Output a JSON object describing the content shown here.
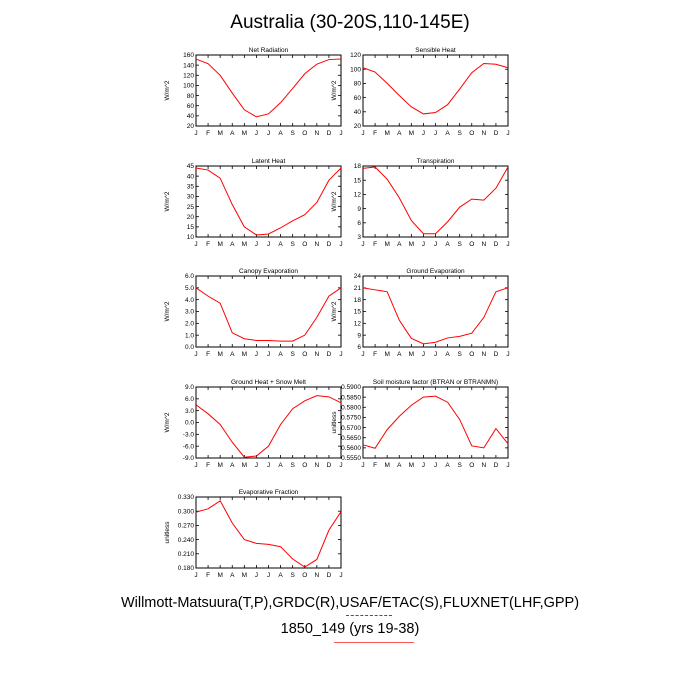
{
  "title": "Australia (30-20S,110-145E)",
  "footer": {
    "line1": "Willmott-Matsuura(T,P),GRDC(R),USAF/ETAC(S),FLUXNET(LHF,GPP)",
    "line2": "1850_149 (yrs 19-38)"
  },
  "colors": {
    "line": "#ff0000",
    "axis": "#000000",
    "underline_blue": "#3a3aff",
    "underline_red": "#ff5555"
  },
  "months": [
    "J",
    "F",
    "M",
    "A",
    "M",
    "J",
    "J",
    "A",
    "S",
    "O",
    "N",
    "D",
    "J"
  ],
  "chart_data": [
    {
      "type": "line",
      "title": "Net Radiation",
      "ylabel": "W/m^2",
      "ylim": [
        20,
        160
      ],
      "yticks": [
        "20",
        "40",
        "60",
        "80",
        "100",
        "120",
        "140",
        "160"
      ],
      "values": [
        152,
        143,
        120,
        85,
        52,
        38,
        44,
        66,
        94,
        123,
        142,
        151,
        152
      ]
    },
    {
      "type": "line",
      "title": "Sensible Heat",
      "ylabel": "W/m^2",
      "ylim": [
        20,
        120
      ],
      "yticks": [
        "20",
        "40",
        "60",
        "80",
        "100",
        "120"
      ],
      "values": [
        102,
        96,
        80,
        63,
        47,
        37,
        39,
        50,
        72,
        95,
        108,
        107,
        102
      ]
    },
    {
      "type": "line",
      "title": "Latent Heat",
      "ylabel": "W/m^2",
      "ylim": [
        10,
        45
      ],
      "yticks": [
        "10",
        "15",
        "20",
        "25",
        "30",
        "35",
        "40",
        "45"
      ],
      "values": [
        44,
        43,
        39,
        26,
        15,
        11,
        11.5,
        14.5,
        18,
        21,
        27,
        38,
        44
      ]
    },
    {
      "type": "line",
      "title": "Transpiration",
      "ylabel": "W/m^2",
      "ylim": [
        3,
        18
      ],
      "yticks": [
        "3",
        "6",
        "9",
        "12",
        "15",
        "18"
      ],
      "values": [
        17.5,
        17.8,
        15.2,
        11.3,
        6.5,
        3.7,
        3.7,
        6.2,
        9.3,
        11,
        10.8,
        13.3,
        17.8
      ]
    },
    {
      "type": "line",
      "title": "Canopy Evaporation",
      "ylabel": "W/m^2",
      "ylim": [
        0,
        6
      ],
      "yticks": [
        "0.0",
        "1.0",
        "2.0",
        "3.0",
        "4.0",
        "5.0",
        "6.0"
      ],
      "values": [
        5.0,
        4.3,
        3.7,
        1.2,
        0.7,
        0.55,
        0.55,
        0.5,
        0.5,
        1.0,
        2.5,
        4.3,
        5.0
      ]
    },
    {
      "type": "line",
      "title": "Ground Evaporation",
      "ylabel": "W/m^2",
      "ylim": [
        6,
        24
      ],
      "yticks": [
        "6",
        "9",
        "12",
        "15",
        "18",
        "21",
        "24"
      ],
      "values": [
        21,
        20.5,
        20,
        12.8,
        8.2,
        6.8,
        7.2,
        8.3,
        8.7,
        9.5,
        13.5,
        20,
        21
      ]
    },
    {
      "type": "line",
      "title": "Ground Heat + Snow Melt",
      "ylabel": "W/m^2",
      "ylim": [
        -9,
        9
      ],
      "yticks": [
        "-9.0",
        "-6.0",
        "-3.0",
        "0.0",
        "3.0",
        "6.0",
        "9.0"
      ],
      "values": [
        4.5,
        2.2,
        -0.5,
        -5.0,
        -8.8,
        -8.5,
        -6.0,
        -0.5,
        3.5,
        5.5,
        6.8,
        6.5,
        5.0
      ]
    },
    {
      "type": "line",
      "title": "Soil moisture factor (BTRAN or BTRANMN)",
      "ylabel": "unitless",
      "ylim": [
        0.555,
        0.59
      ],
      "yticks": [
        "0.5550",
        "0.5600",
        "0.5650",
        "0.5700",
        "0.5750",
        "0.5800",
        "0.5850",
        "0.5900"
      ],
      "values": [
        0.5615,
        0.5598,
        0.569,
        0.5755,
        0.581,
        0.585,
        0.5855,
        0.5825,
        0.574,
        0.561,
        0.56,
        0.5695,
        0.562
      ]
    },
    {
      "type": "line",
      "title": "Evaporative Fraction",
      "ylabel": "unitless",
      "ylim": [
        0.18,
        0.33
      ],
      "yticks": [
        "0.180",
        "0.210",
        "0.240",
        "0.270",
        "0.300",
        "0.330"
      ],
      "values": [
        0.298,
        0.305,
        0.322,
        0.275,
        0.24,
        0.232,
        0.23,
        0.225,
        0.199,
        0.182,
        0.198,
        0.26,
        0.299
      ]
    }
  ]
}
